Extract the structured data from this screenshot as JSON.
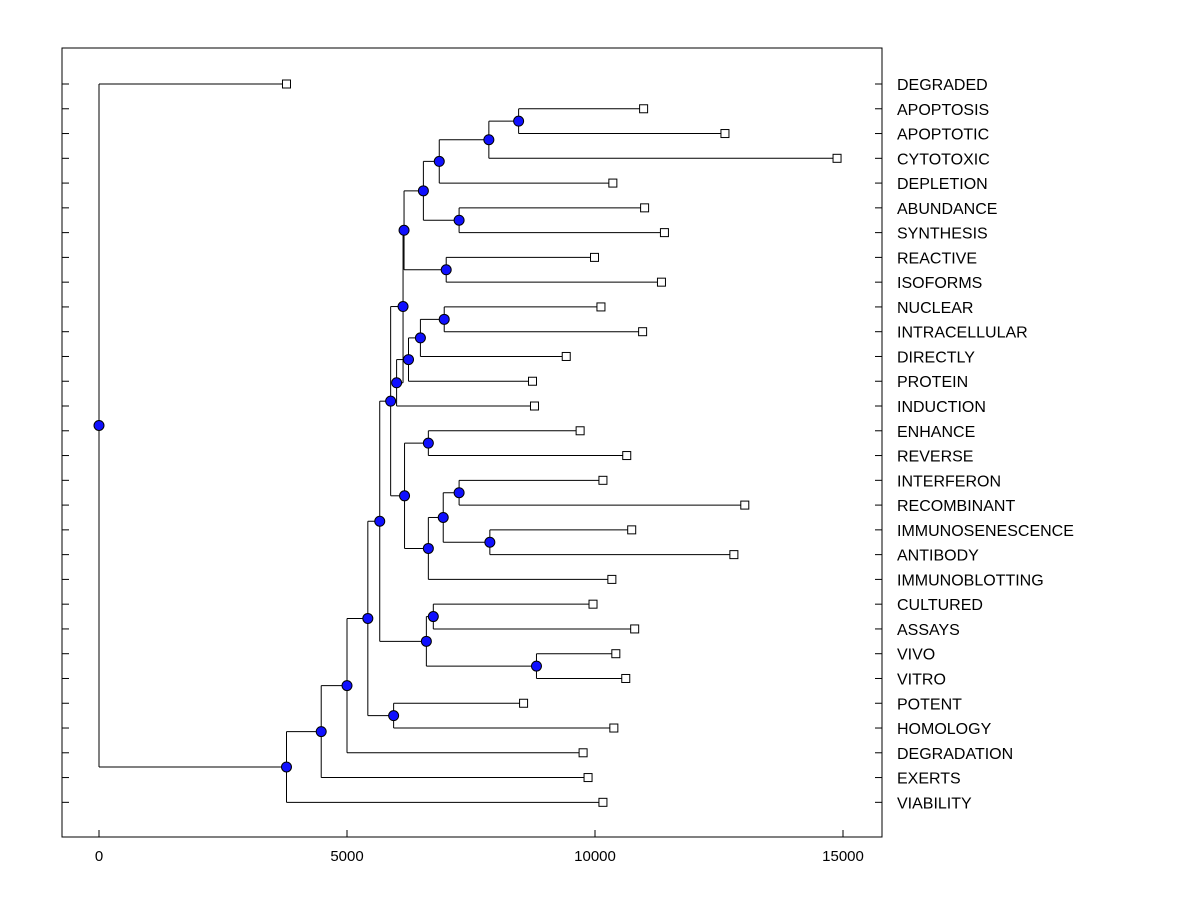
{
  "chart_data": {
    "type": "dendrogram",
    "orientation": "horizontal",
    "x_axis": {
      "ticks": [
        0,
        5000,
        10000,
        15000
      ],
      "tick_labels": [
        "0",
        "5000",
        "10000",
        "15000"
      ],
      "range": [
        -700,
        15600
      ]
    },
    "leaves": [
      {
        "label": "DEGRADED",
        "x": 3780
      },
      {
        "label": "APOPTOSIS",
        "x": 10980
      },
      {
        "label": "APOPTOTIC",
        "x": 12620
      },
      {
        "label": "CYTOTOXIC",
        "x": 14880
      },
      {
        "label": "DEPLETION",
        "x": 10360
      },
      {
        "label": "ABUNDANCE",
        "x": 11000
      },
      {
        "label": "SYNTHESIS",
        "x": 11400
      },
      {
        "label": "REACTIVE",
        "x": 9990
      },
      {
        "label": "ISOFORMS",
        "x": 11340
      },
      {
        "label": "NUCLEAR",
        "x": 10120
      },
      {
        "label": "INTRACELLULAR",
        "x": 10960
      },
      {
        "label": "DIRECTLY",
        "x": 9420
      },
      {
        "label": "PROTEIN",
        "x": 8740
      },
      {
        "label": "INDUCTION",
        "x": 8780
      },
      {
        "label": "ENHANCE",
        "x": 9700
      },
      {
        "label": "REVERSE",
        "x": 10640
      },
      {
        "label": "INTERFERON",
        "x": 10160
      },
      {
        "label": "RECOMBINANT",
        "x": 13020
      },
      {
        "label": "IMMUNOSENESCENCE",
        "x": 10740
      },
      {
        "label": "ANTIBODY",
        "x": 12800
      },
      {
        "label": "IMMUNOBLOTTING",
        "x": 10340
      },
      {
        "label": "CULTURED",
        "x": 9960
      },
      {
        "label": "ASSAYS",
        "x": 10800
      },
      {
        "label": "VIVO",
        "x": 10420
      },
      {
        "label": "VITRO",
        "x": 10620
      },
      {
        "label": "POTENT",
        "x": 8560
      },
      {
        "label": "HOMOLOGY",
        "x": 10380
      },
      {
        "label": "DEGRADATION",
        "x": 9760
      },
      {
        "label": "EXERTS",
        "x": 9860
      },
      {
        "label": "VIABILITY",
        "x": 10160
      }
    ],
    "merges": [
      {
        "id": "n_apop",
        "x": 8460,
        "children": [
          "APOPTOSIS",
          "APOPTOTIC"
        ]
      },
      {
        "id": "n_cyto",
        "x": 7860,
        "children": [
          "n_apop",
          "CYTOTOXIC"
        ]
      },
      {
        "id": "n_depl",
        "x": 6860,
        "children": [
          "n_cyto",
          "DEPLETION"
        ]
      },
      {
        "id": "n_abun",
        "x": 7260,
        "children": [
          "ABUNDANCE",
          "SYNTHESIS"
        ]
      },
      {
        "id": "n_grpA",
        "x": 6540,
        "children": [
          "n_depl",
          "n_abun"
        ]
      },
      {
        "id": "n_reac",
        "x": 7000,
        "children": [
          "REACTIVE",
          "ISOFORMS"
        ]
      },
      {
        "id": "n_grpB",
        "x": 6150,
        "children": [
          "n_grpA",
          "n_reac"
        ]
      },
      {
        "id": "n_nucl",
        "x": 6960,
        "children": [
          "NUCLEAR",
          "INTRACELLULAR"
        ]
      },
      {
        "id": "n_dirt",
        "x": 6480,
        "children": [
          "n_nucl",
          "DIRECTLY"
        ]
      },
      {
        "id": "n_prot",
        "x": 6240,
        "children": [
          "n_dirt",
          "PROTEIN"
        ]
      },
      {
        "id": "n_indu",
        "x": 6000,
        "children": [
          "n_prot",
          "INDUCTION"
        ]
      },
      {
        "id": "n_grpC",
        "x": 6130,
        "children": [
          "n_grpB",
          "n_indu"
        ]
      },
      {
        "id": "n_enha",
        "x": 6640,
        "children": [
          "ENHANCE",
          "REVERSE"
        ]
      },
      {
        "id": "n_intf",
        "x": 7260,
        "children": [
          "INTERFERON",
          "RECOMBINANT"
        ]
      },
      {
        "id": "n_immu",
        "x": 7880,
        "children": [
          "IMMUNOSENESCENCE",
          "ANTIBODY"
        ]
      },
      {
        "id": "n_grpD",
        "x": 6940,
        "children": [
          "n_intf",
          "n_immu"
        ]
      },
      {
        "id": "n_blot",
        "x": 6640,
        "children": [
          "n_grpD",
          "IMMUNOBLOTTING"
        ]
      },
      {
        "id": "n_grpE",
        "x": 6160,
        "children": [
          "n_enha",
          "n_blot"
        ]
      },
      {
        "id": "n_grpF",
        "x": 5880,
        "children": [
          "n_grpC",
          "n_grpE"
        ]
      },
      {
        "id": "n_cult",
        "x": 6740,
        "children": [
          "CULTURED",
          "ASSAYS"
        ]
      },
      {
        "id": "n_vivo",
        "x": 8820,
        "children": [
          "VIVO",
          "VITRO"
        ]
      },
      {
        "id": "n_grpG",
        "x": 6600,
        "children": [
          "n_cult",
          "n_vivo"
        ]
      },
      {
        "id": "n_grpH",
        "x": 5660,
        "children": [
          "n_grpF",
          "n_grpG"
        ]
      },
      {
        "id": "n_pote",
        "x": 5940,
        "children": [
          "POTENT",
          "HOMOLOGY"
        ]
      },
      {
        "id": "n_grpI",
        "x": 5420,
        "children": [
          "n_grpH",
          "n_pote"
        ]
      },
      {
        "id": "n_degr",
        "x": 5000,
        "children": [
          "n_grpI",
          "DEGRADATION"
        ]
      },
      {
        "id": "n_exer",
        "x": 4480,
        "children": [
          "n_degr",
          "EXERTS"
        ]
      },
      {
        "id": "n_viab",
        "x": 3780,
        "children": [
          "n_exer",
          "VIABILITY"
        ]
      },
      {
        "id": "n_root",
        "x": 0,
        "children": [
          "DEGRADED",
          "n_viab"
        ]
      }
    ],
    "grid": false,
    "colors": {
      "node": "#1010ff",
      "leaf": "#ffffff",
      "line": "#000000"
    }
  }
}
